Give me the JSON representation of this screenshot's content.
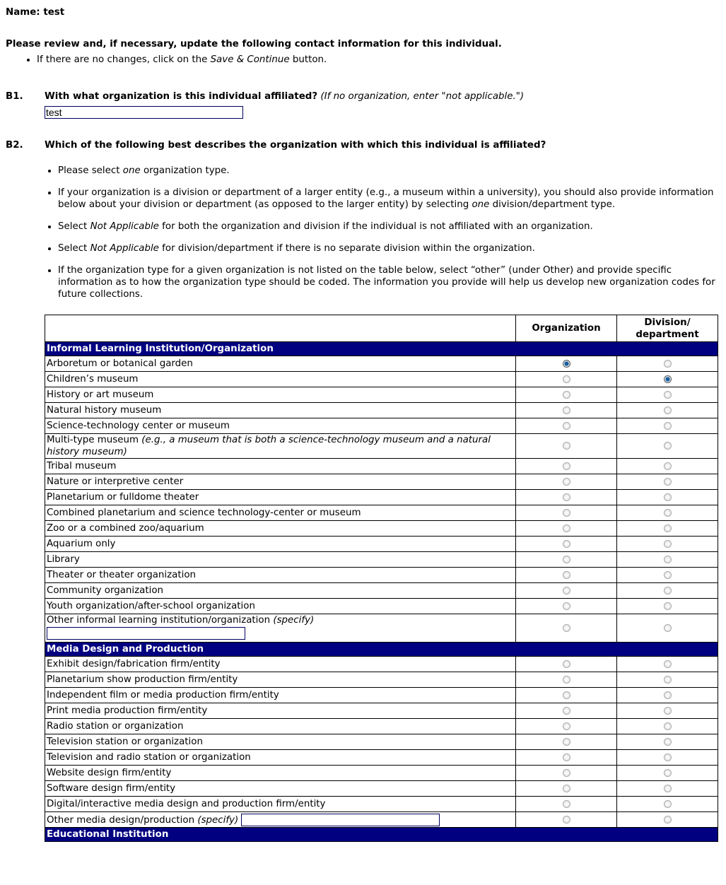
{
  "name_label": "Name:",
  "name_value": "test",
  "intro": "Please review and, if necessary, update the following contact information for this individual.",
  "intro_bullet": {
    "pre": "If there are no changes, click on the ",
    "em": "Save & Continue",
    "post": " button."
  },
  "b1": {
    "num": "B1.",
    "question": "With what organization is this individual affiliated?",
    "note": "(If no organization, enter \"not applicable.\")",
    "value": "test"
  },
  "b2": {
    "num": "B2.",
    "question": "Which of the following best describes the organization with which this individual is affiliated?",
    "bullets": [
      {
        "pre": "Please select ",
        "em": "one",
        "post": " organization type."
      },
      {
        "pre": "If your organization is a division or department of a larger entity (e.g., a museum within a university), you should also provide information below about your division or department (as opposed to the larger entity) by selecting ",
        "em": "one",
        "post": " division/department type."
      },
      {
        "pre": "Select ",
        "em": "Not Applicable",
        "post": " for both the organization and division if the individual is not affiliated with an organization."
      },
      {
        "pre": "Select ",
        "em": "Not Applicable",
        "post": " for division/department if there is no separate division within the organization."
      },
      {
        "pre": "If the organization type for a given organization is not listed on the table below, select “other” (under Other) and provide specific information as to how the organization type should be coded. The information you provide will help us develop new organization codes for future collections.",
        "em": "",
        "post": ""
      }
    ]
  },
  "table": {
    "col_org": "Organization",
    "col_div": "Division/ department",
    "sections": [
      {
        "title": "Informal Learning Institution/Organization",
        "rows": [
          {
            "label": "Arboretum or botanical garden",
            "org": true,
            "div": false
          },
          {
            "label": "Children’s museum",
            "org": false,
            "div": true
          },
          {
            "label": "History or art museum"
          },
          {
            "label": "Natural history museum"
          },
          {
            "label": "Science-technology center or museum"
          },
          {
            "label": "Multi-type museum ",
            "em": "(e.g., a museum that is both a science-technology museum and a natural history museum)"
          },
          {
            "label": "Tribal museum"
          },
          {
            "label": "Nature or interpretive center"
          },
          {
            "label": "Planetarium or fulldome theater"
          },
          {
            "label": "Combined planetarium and science technology-center or museum"
          },
          {
            "label": "Zoo or a combined zoo/aquarium"
          },
          {
            "label": "Aquarium only"
          },
          {
            "label": "Library"
          },
          {
            "label": "Theater or theater organization"
          },
          {
            "label": "Community organization"
          },
          {
            "label": "Youth organization/after-school organization"
          },
          {
            "label": "Other informal learning institution/organization ",
            "em": "(specify)",
            "specify": "block"
          }
        ]
      },
      {
        "title": "Media Design and Production",
        "rows": [
          {
            "label": "Exhibit design/fabrication firm/entity"
          },
          {
            "label": "Planetarium show production firm/entity"
          },
          {
            "label": "Independent film or media production firm/entity"
          },
          {
            "label": "Print media production firm/entity"
          },
          {
            "label": "Radio station or organization"
          },
          {
            "label": "Television station or organization"
          },
          {
            "label": "Television and radio station or organization"
          },
          {
            "label": "Website design firm/entity"
          },
          {
            "label": "Software design firm/entity"
          },
          {
            "label": "Digital/interactive media design and production firm/entity"
          },
          {
            "label": "Other media design/production ",
            "em": "(specify)",
            "specify": "inline"
          }
        ]
      },
      {
        "title": "Educational Institution",
        "rows": []
      }
    ]
  }
}
